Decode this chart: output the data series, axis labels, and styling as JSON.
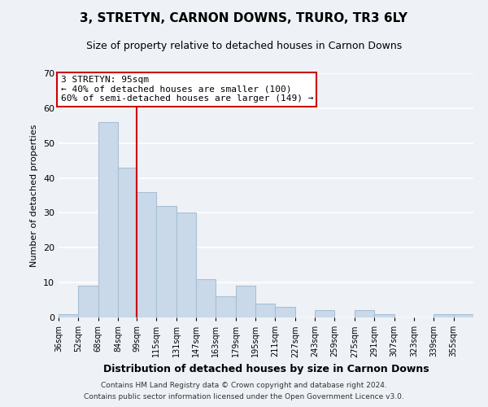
{
  "title": "3, STRETYN, CARNON DOWNS, TRURO, TR3 6LY",
  "subtitle": "Size of property relative to detached houses in Carnon Downs",
  "xlabel": "Distribution of detached houses by size in Carnon Downs",
  "ylabel": "Number of detached properties",
  "bar_color": "#c9d9ea",
  "bar_edge_color": "#a8bfd4",
  "background_color": "#eef2f7",
  "axes_bg_color": "#eef2f7",
  "grid_color": "#ffffff",
  "bin_labels": [
    "36sqm",
    "52sqm",
    "68sqm",
    "84sqm",
    "99sqm",
    "115sqm",
    "131sqm",
    "147sqm",
    "163sqm",
    "179sqm",
    "195sqm",
    "211sqm",
    "227sqm",
    "243sqm",
    "259sqm",
    "275sqm",
    "291sqm",
    "307sqm",
    "323sqm",
    "339sqm",
    "355sqm"
  ],
  "bar_heights": [
    1,
    9,
    56,
    43,
    36,
    32,
    30,
    11,
    6,
    9,
    4,
    3,
    0,
    2,
    0,
    2,
    1,
    0,
    0,
    1,
    1
  ],
  "bin_edges": [
    36,
    52,
    68,
    84,
    99,
    115,
    131,
    147,
    163,
    179,
    195,
    211,
    227,
    243,
    259,
    275,
    291,
    307,
    323,
    339,
    355,
    371
  ],
  "property_line_x": 99,
  "ylim": [
    0,
    70
  ],
  "yticks": [
    0,
    10,
    20,
    30,
    40,
    50,
    60,
    70
  ],
  "annotation_title": "3 STRETYN: 95sqm",
  "annotation_line1": "← 40% of detached houses are smaller (100)",
  "annotation_line2": "60% of semi-detached houses are larger (149) →",
  "annotation_box_color": "#ffffff",
  "annotation_box_edge_color": "#cc0000",
  "property_line_color": "#cc0000",
  "footnote1": "Contains HM Land Registry data © Crown copyright and database right 2024.",
  "footnote2": "Contains public sector information licensed under the Open Government Licence v3.0."
}
